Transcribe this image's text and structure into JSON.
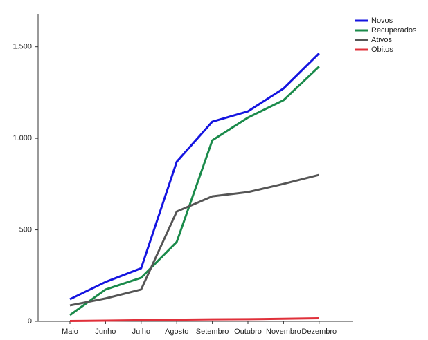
{
  "chart_data": {
    "type": "line",
    "categories": [
      "Maio",
      "Junho",
      "Julho",
      "Agosto",
      "Setembro",
      "Outubro",
      "Novembro",
      "Dezembro"
    ],
    "series": [
      {
        "name": "Novos",
        "color": "#1414e0",
        "values": [
          121,
          215,
          290,
          872,
          1091,
          1147,
          1272,
          1464
        ]
      },
      {
        "name": "Recuperados",
        "color": "#1a8a4a",
        "values": [
          34,
          174,
          238,
          434,
          989,
          1113,
          1208,
          1392
        ]
      },
      {
        "name": "Ativos",
        "color": "#555555",
        "values": [
          87,
          125,
          174,
          600,
          683,
          706,
          751,
          800
        ]
      },
      {
        "name": "Obitos",
        "color": "#e0303a",
        "values": [
          2,
          4,
          6,
          9,
          11,
          12,
          14,
          17
        ]
      }
    ],
    "ylim": [
      0,
      1680
    ],
    "yticks": [
      0,
      500,
      {
        "value": 1000,
        "label": "1.000"
      },
      {
        "value": 1500,
        "label": "1.500"
      }
    ],
    "legend": "top-right"
  }
}
